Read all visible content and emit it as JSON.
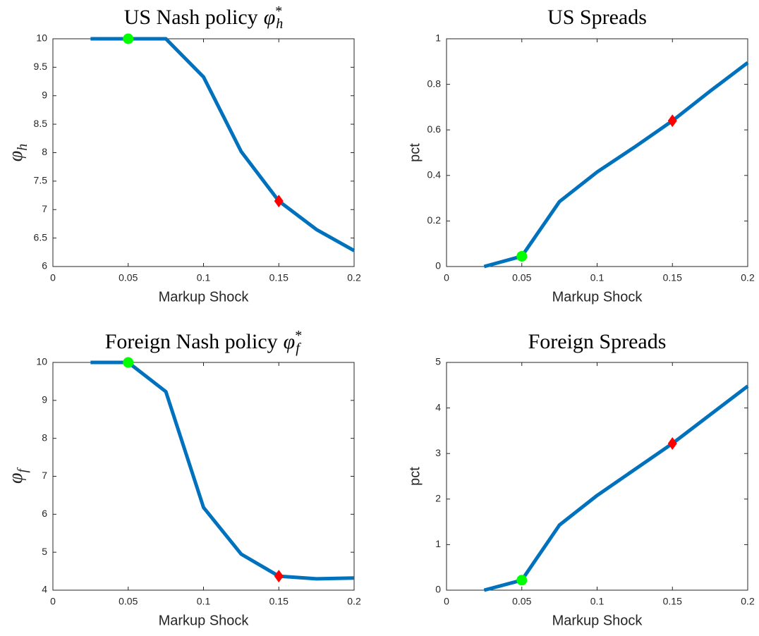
{
  "chart_data": [
    {
      "type": "line",
      "title": "US Nash policy",
      "title_symbol": "φ",
      "title_sup": "*",
      "title_sub": "h",
      "xlabel": "Markup Shock",
      "ylabel": "φ",
      "ylabel_sub": "h",
      "x": [
        0.025,
        0.05,
        0.075,
        0.1,
        0.125,
        0.15,
        0.175,
        0.2
      ],
      "values": [
        10,
        10,
        10,
        9.33,
        8.02,
        7.15,
        6.65,
        6.28
      ],
      "color": "#0072bd",
      "markers": [
        {
          "x": 0.05,
          "y": 10,
          "shape": "circle",
          "color": "#00ff00"
        },
        {
          "x": 0.15,
          "y": 7.15,
          "shape": "diamond",
          "color": "#ff0000"
        }
      ],
      "xlim": [
        0,
        0.2
      ],
      "xticks": [
        0,
        0.05,
        0.1,
        0.15,
        0.2
      ],
      "ylim": [
        6,
        10
      ],
      "yticks": [
        6,
        6.5,
        7,
        7.5,
        8,
        8.5,
        9,
        9.5,
        10
      ]
    },
    {
      "type": "line",
      "title": "US Spreads",
      "xlabel": "Markup Shock",
      "ylabel": "pct",
      "x": [
        0.025,
        0.05,
        0.075,
        0.1,
        0.125,
        0.15,
        0.175,
        0.2
      ],
      "values": [
        0,
        0.045,
        0.285,
        0.415,
        0.525,
        0.64,
        0.77,
        0.895
      ],
      "color": "#0072bd",
      "markers": [
        {
          "x": 0.05,
          "y": 0.045,
          "shape": "circle",
          "color": "#00ff00"
        },
        {
          "x": 0.15,
          "y": 0.64,
          "shape": "diamond",
          "color": "#ff0000"
        }
      ],
      "xlim": [
        0,
        0.2
      ],
      "xticks": [
        0,
        0.05,
        0.1,
        0.15,
        0.2
      ],
      "ylim": [
        0,
        1
      ],
      "yticks": [
        0,
        0.2,
        0.4,
        0.6,
        0.8,
        1
      ]
    },
    {
      "type": "line",
      "title": "Foreign Nash policy",
      "title_symbol": "φ",
      "title_sup": "*",
      "title_sub": "f",
      "xlabel": "Markup Shock",
      "ylabel": "φ",
      "ylabel_sub": "f",
      "x": [
        0.025,
        0.05,
        0.075,
        0.1,
        0.125,
        0.15,
        0.175,
        0.2
      ],
      "values": [
        10,
        10,
        9.23,
        6.18,
        4.95,
        4.37,
        4.3,
        4.32
      ],
      "color": "#0072bd",
      "markers": [
        {
          "x": 0.05,
          "y": 10,
          "shape": "circle",
          "color": "#00ff00"
        },
        {
          "x": 0.15,
          "y": 4.37,
          "shape": "diamond",
          "color": "#ff0000"
        }
      ],
      "xlim": [
        0,
        0.2
      ],
      "xticks": [
        0,
        0.05,
        0.1,
        0.15,
        0.2
      ],
      "ylim": [
        4,
        10
      ],
      "yticks": [
        4,
        5,
        6,
        7,
        8,
        9,
        10
      ]
    },
    {
      "type": "line",
      "title": "Foreign Spreads",
      "xlabel": "Markup Shock",
      "ylabel": "pct",
      "x": [
        0.025,
        0.05,
        0.075,
        0.1,
        0.125,
        0.15,
        0.175,
        0.2
      ],
      "values": [
        0,
        0.22,
        1.43,
        2.08,
        2.65,
        3.22,
        3.85,
        4.48
      ],
      "color": "#0072bd",
      "markers": [
        {
          "x": 0.05,
          "y": 0.22,
          "shape": "circle",
          "color": "#00ff00"
        },
        {
          "x": 0.15,
          "y": 3.22,
          "shape": "diamond",
          "color": "#ff0000"
        }
      ],
      "xlim": [
        0,
        0.2
      ],
      "xticks": [
        0,
        0.05,
        0.1,
        0.15,
        0.2
      ],
      "ylim": [
        0,
        5
      ],
      "yticks": [
        0,
        1,
        2,
        3,
        4,
        5
      ]
    }
  ]
}
